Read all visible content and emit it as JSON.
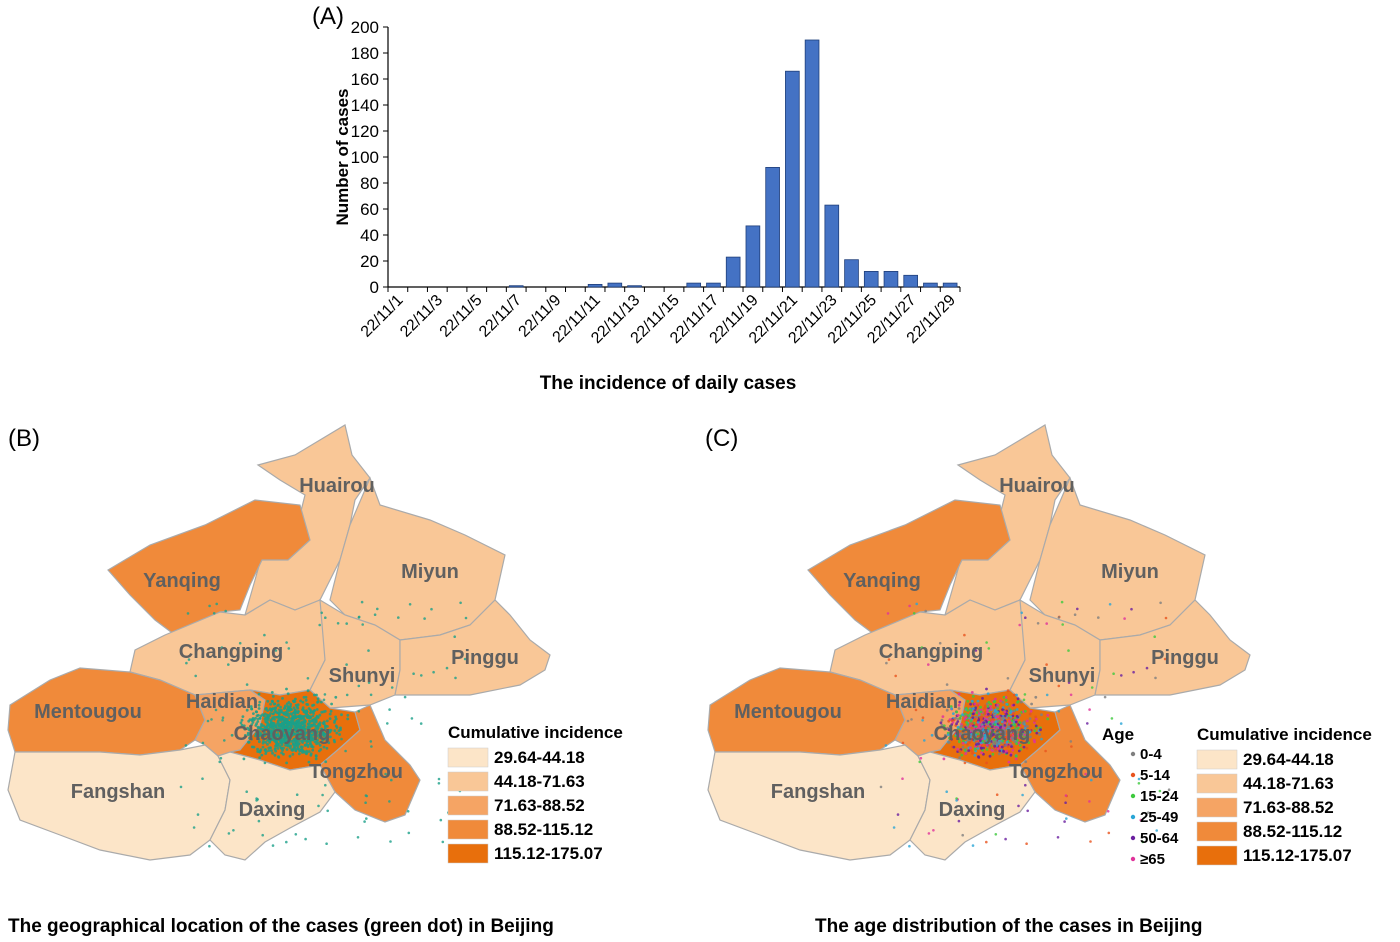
{
  "chart_data": [
    {
      "type": "bar",
      "panel": "(A)",
      "xlabel": "The incidence of daily cases",
      "ylabel": "Number of cases",
      "ylim": [
        0,
        200
      ],
      "yticks": [
        0,
        20,
        40,
        60,
        80,
        100,
        120,
        140,
        160,
        180,
        200
      ],
      "categories": [
        "22/11/1",
        "22/11/2",
        "22/11/3",
        "22/11/4",
        "22/11/5",
        "22/11/6",
        "22/11/7",
        "22/11/8",
        "22/11/9",
        "22/11/10",
        "22/11/11",
        "22/11/12",
        "22/11/13",
        "22/11/14",
        "22/11/15",
        "22/11/16",
        "22/11/17",
        "22/11/18",
        "22/11/19",
        "22/11/20",
        "22/11/21",
        "22/11/22",
        "22/11/23",
        "22/11/24",
        "22/11/25",
        "22/11/26",
        "22/11/27",
        "22/11/28",
        "22/11/29"
      ],
      "xtick_labels": [
        "22/11/1",
        "22/11/3",
        "22/11/5",
        "22/11/7",
        "22/11/9",
        "22/11/11",
        "22/11/13",
        "22/11/15",
        "22/11/17",
        "22/11/19",
        "22/11/21",
        "22/11/23",
        "22/11/25",
        "22/11/27",
        "22/11/29"
      ],
      "values": [
        0,
        0,
        0,
        0,
        0,
        0,
        1,
        0,
        0,
        0,
        2,
        3,
        1,
        0,
        0,
        3,
        3,
        23,
        47,
        92,
        166,
        190,
        63,
        21,
        12,
        12,
        9,
        3,
        3
      ],
      "bar_color": "#4472C4",
      "grid": false
    },
    {
      "type": "choropleth",
      "panel": "(B)",
      "caption": "The geographical location of the cases (green dot) in Beijing",
      "legend_title": "Cumulative incidence",
      "legend": [
        {
          "label": "29.64-44.18",
          "color": "#FCE5C8"
        },
        {
          "label": "44.18-71.63",
          "color": "#F9C797"
        },
        {
          "label": "71.63-88.52",
          "color": "#F5A464"
        },
        {
          "label": "88.52-115.12",
          "color": "#F08A3A"
        },
        {
          "label": "115.12-175.07",
          "color": "#E86F0C"
        }
      ],
      "districts": [
        {
          "name": "Huairou",
          "class": 1
        },
        {
          "name": "Miyun",
          "class": 1
        },
        {
          "name": "Yanqing",
          "class": 3
        },
        {
          "name": "Changping",
          "class": 1
        },
        {
          "name": "Shunyi",
          "class": 1
        },
        {
          "name": "Pinggu",
          "class": 1
        },
        {
          "name": "Mentougou",
          "class": 3
        },
        {
          "name": "Haidian",
          "class": 2
        },
        {
          "name": "Chaoyang",
          "class": 4
        },
        {
          "name": "Tongzhou",
          "class": 3
        },
        {
          "name": "Fangshan",
          "class": 0
        },
        {
          "name": "Daxing",
          "class": 0
        }
      ],
      "dot_color": "#1BA08A"
    },
    {
      "type": "choropleth",
      "panel": "(C)",
      "caption": "The age distribution of the cases in Beijing",
      "legend_title": "Cumulative incidence",
      "age_legend_title": "Age",
      "age_groups": [
        {
          "label": "0-4",
          "color": "#7F7F7F"
        },
        {
          "label": "5-14",
          "color": "#E8541E"
        },
        {
          "label": "15-24",
          "color": "#3DC93D"
        },
        {
          "label": "25-49",
          "color": "#29A5D6"
        },
        {
          "label": "50-64",
          "color": "#6A1FA0"
        },
        {
          "label": "≥65",
          "color": "#E0339B"
        }
      ]
    }
  ]
}
